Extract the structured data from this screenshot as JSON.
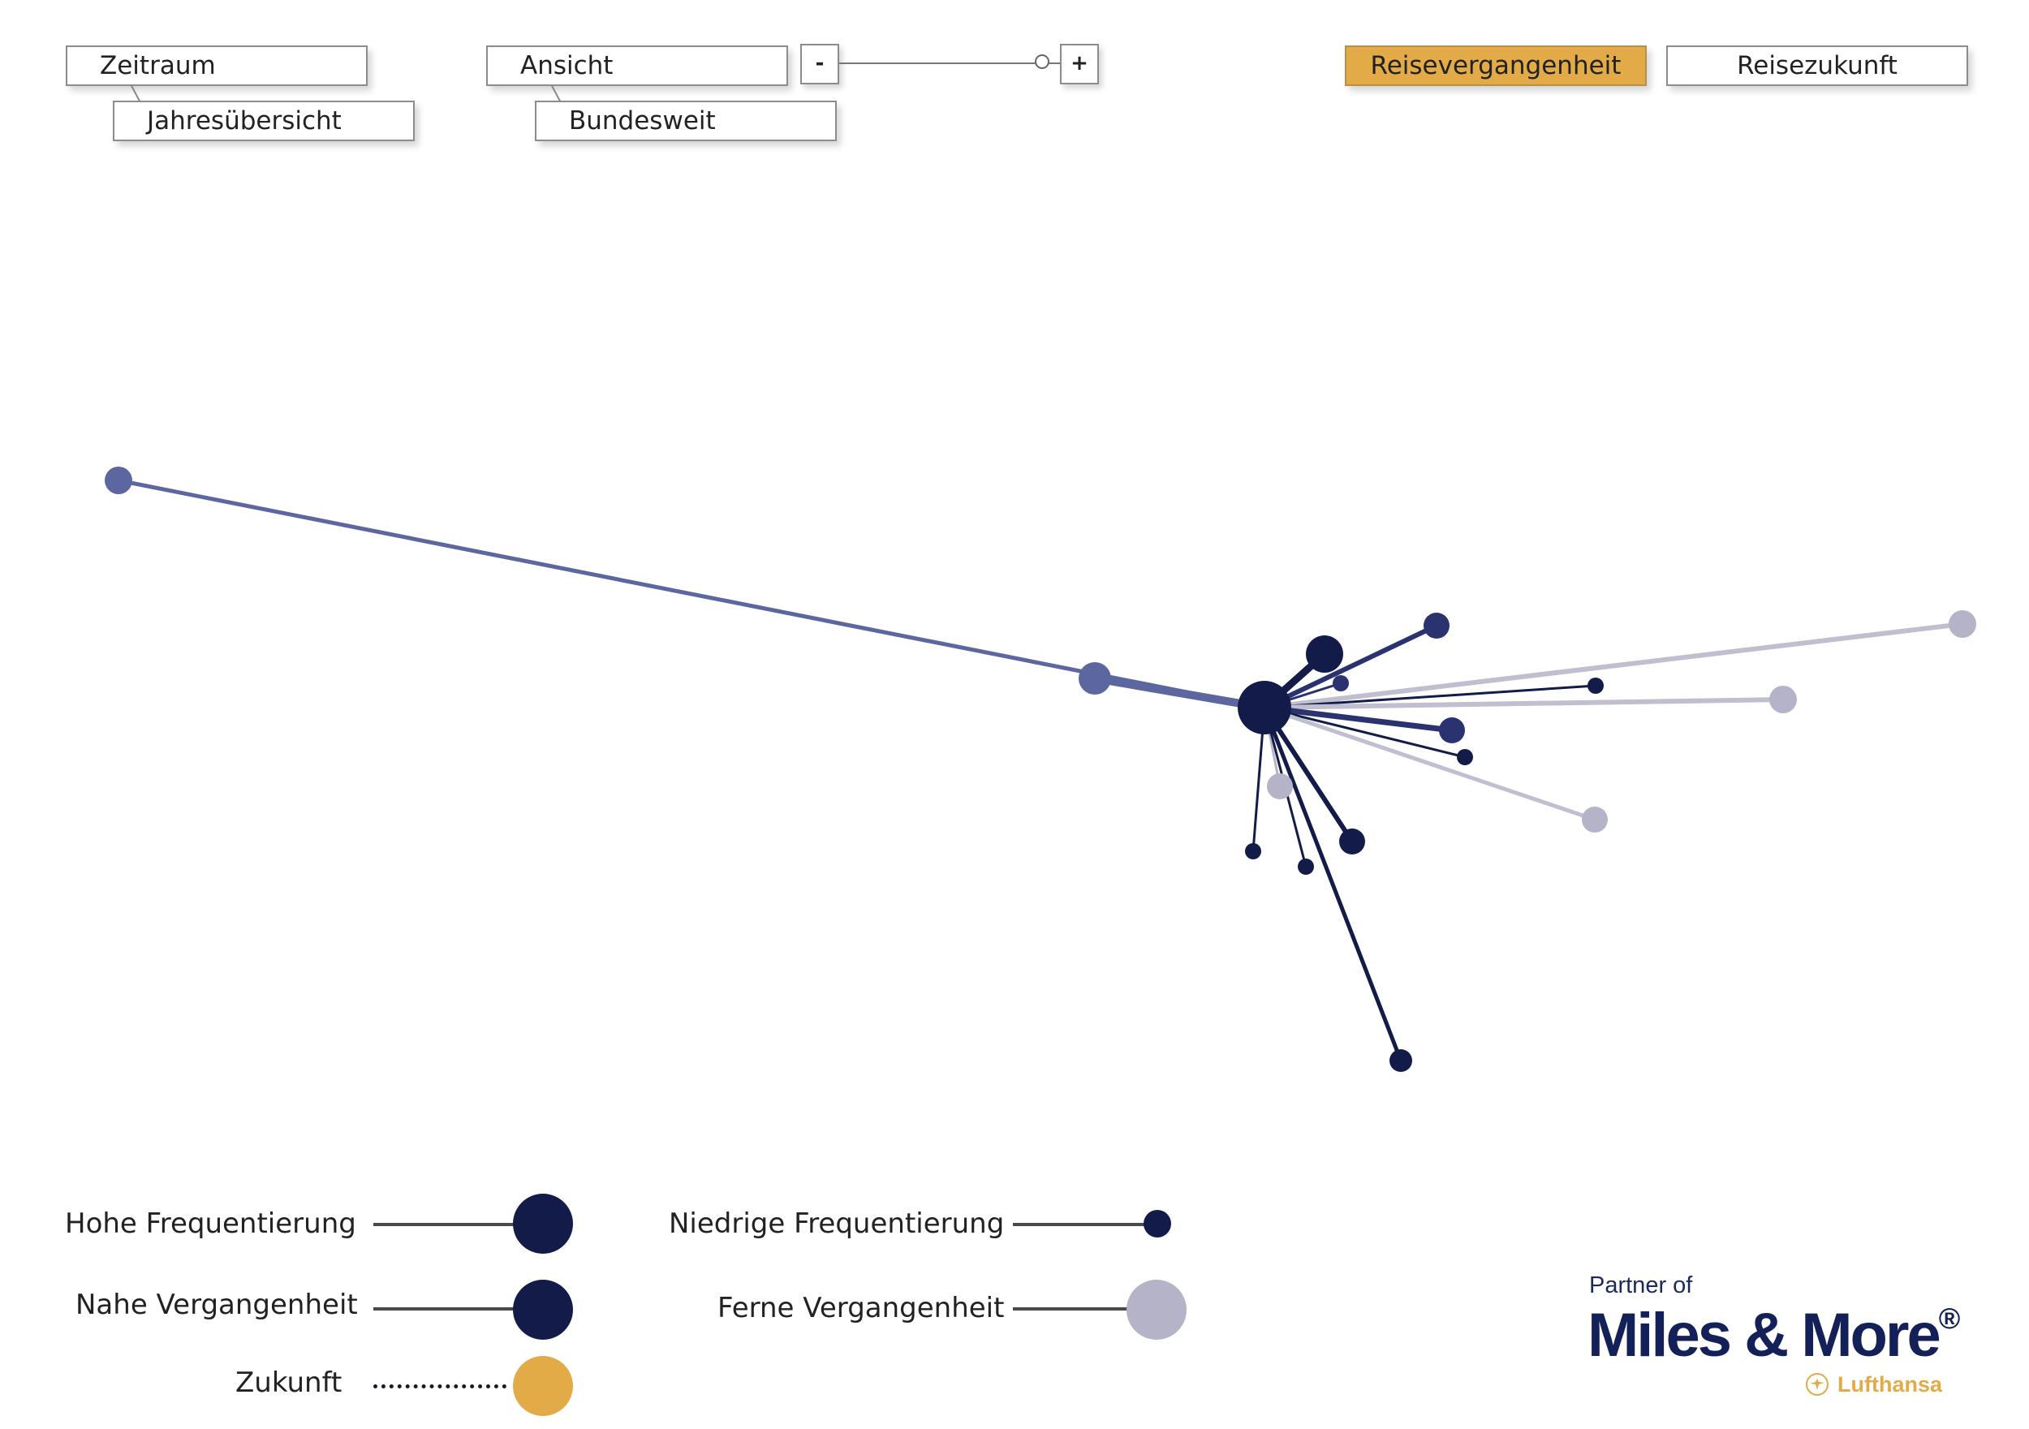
{
  "controls": {
    "zeitraum_label": "Zeitraum",
    "zeitraum_value": "Jahresübersicht",
    "ansicht_label": "Ansicht",
    "ansicht_value": "Bundesweit",
    "zoom_minus": "-",
    "zoom_plus": "+",
    "zoom_level": 0.92
  },
  "tabs": {
    "past": "Reisevergangenheit",
    "future": "Reisezukunft",
    "active": "past"
  },
  "colors": {
    "accent": "#e2ab48",
    "navy": "#131b48",
    "mid_navy": "#2b3270",
    "blue": "#5c67a0",
    "pale": "#b4b3c8",
    "pale_line": "#c0bfd0"
  },
  "network": {
    "hub": {
      "color": "navy",
      "r": 33
    },
    "spokes": [
      {
        "id": "far-west",
        "color": "blue",
        "r": 17,
        "w": 5
      },
      {
        "id": "west",
        "color": "blue",
        "r": 20,
        "w": 10
      },
      {
        "id": "near-ne-large",
        "color": "navy",
        "r": 23,
        "w": 9
      },
      {
        "id": "ne",
        "color": "mid_navy",
        "r": 16,
        "w": 6
      },
      {
        "id": "ne-small",
        "color": "mid_navy",
        "r": 10,
        "w": 3
      },
      {
        "id": "far-east",
        "color": "pale_line",
        "r": 17,
        "w": 6
      },
      {
        "id": "east-small",
        "color": "navy",
        "r": 10,
        "w": 3
      },
      {
        "id": "east",
        "color": "pale_line",
        "r": 17,
        "w": 6
      },
      {
        "id": "east-mid",
        "color": "mid_navy",
        "r": 16,
        "w": 7
      },
      {
        "id": "east-lower-small",
        "color": "navy",
        "r": 10,
        "w": 3
      },
      {
        "id": "se-pale",
        "color": "pale_line",
        "r": 16,
        "w": 5
      },
      {
        "id": "south-pale",
        "color": "pale",
        "r": 16,
        "w": 3
      },
      {
        "id": "south-small-a",
        "color": "navy",
        "r": 10,
        "w": 3
      },
      {
        "id": "south-small-b",
        "color": "navy",
        "r": 10,
        "w": 3
      },
      {
        "id": "se-mid",
        "color": "navy",
        "r": 16,
        "w": 6
      },
      {
        "id": "far-south",
        "color": "navy",
        "r": 14,
        "w": 5
      }
    ]
  },
  "legend": {
    "hohe": "Hohe Frequentierung",
    "niedrige": "Niedrige Frequentierung",
    "nahe": "Nahe Vergangenheit",
    "ferne": "Ferne Vergangenheit",
    "zukunft": "Zukunft"
  },
  "logo": {
    "partner": "Partner of",
    "brand": "Miles & More",
    "registered": "®",
    "airline": "Lufthansa"
  }
}
